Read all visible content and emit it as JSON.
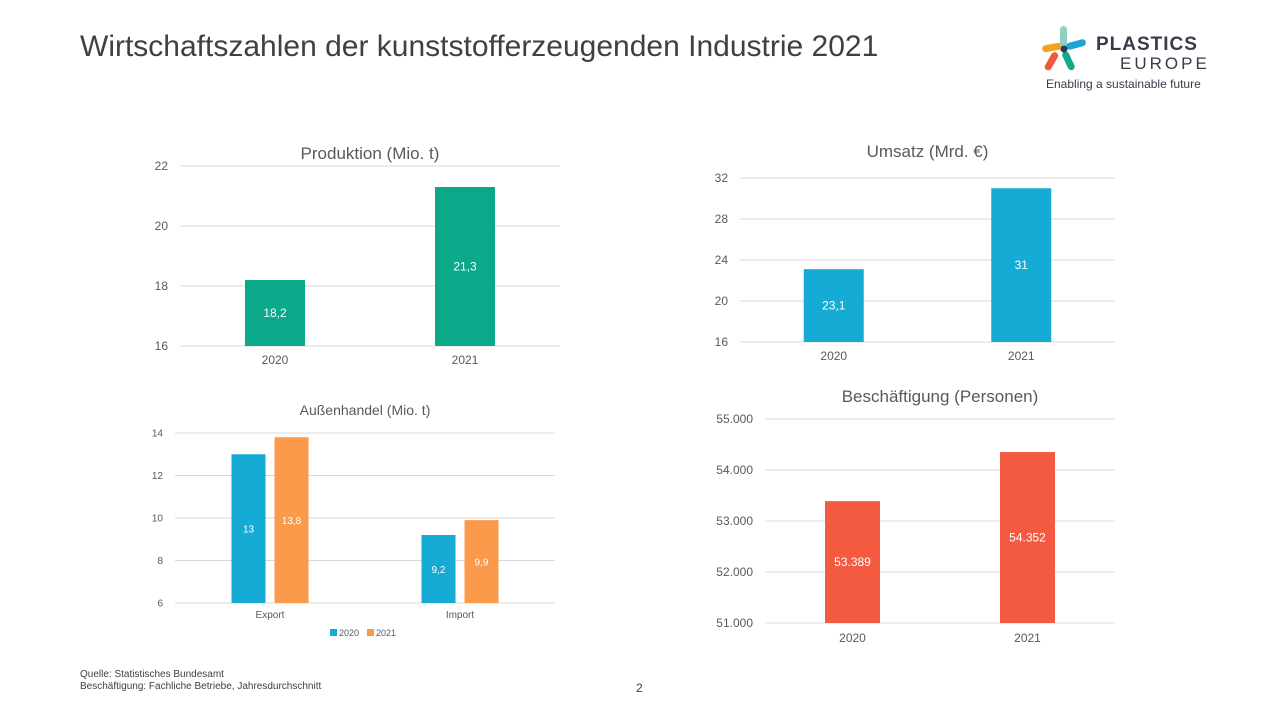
{
  "slide": {
    "title": "Wirtschaftszahlen der kunststofferzeugenden Industrie 2021",
    "page_number": "2",
    "footnotes": [
      "Quelle: Statistisches Bundesamt",
      "Beschäftigung: Fachliche Betriebe, Jahresdurchschnitt"
    ]
  },
  "logo": {
    "brand_line1": "PLASTICS",
    "brand_line2": "EUROPE",
    "tagline": "Enabling a sustainable future",
    "colors": [
      "#1aa7d6",
      "#f7a21b",
      "#ef5a3c",
      "#14a88a"
    ]
  },
  "chart_data": [
    {
      "id": "produktion",
      "type": "bar",
      "title": "Produktion (Mio. t)",
      "categories": [
        "2020",
        "2021"
      ],
      "values": [
        18.2,
        21.3
      ],
      "value_labels": [
        "18,2",
        "21,3"
      ],
      "ylim": [
        16,
        22
      ],
      "yticks": [
        16,
        18,
        20,
        22
      ],
      "ytick_labels": [
        "16",
        "18",
        "20",
        "22"
      ],
      "color": "#0aa98a",
      "grid": true
    },
    {
      "id": "umsatz",
      "type": "bar",
      "title": "Umsatz (Mrd. €)",
      "categories": [
        "2020",
        "2021"
      ],
      "values": [
        23.1,
        31
      ],
      "value_labels": [
        "23,1",
        "31"
      ],
      "ylim": [
        16,
        32
      ],
      "yticks": [
        16,
        20,
        24,
        28,
        32
      ],
      "ytick_labels": [
        "16",
        "20",
        "24",
        "28",
        "32"
      ],
      "color": "#16abd4",
      "grid": true
    },
    {
      "id": "aussenhandel",
      "type": "bar",
      "title": "Außenhandel (Mio. t)",
      "categories": [
        "Export",
        "Import"
      ],
      "series": [
        {
          "name": "2020",
          "values": [
            13,
            9.2
          ],
          "value_labels": [
            "13",
            "9,2"
          ],
          "color": "#16abd4"
        },
        {
          "name": "2021",
          "values": [
            13.8,
            9.9
          ],
          "value_labels": [
            "13,8",
            "9,9"
          ],
          "color": "#fb9a4a"
        }
      ],
      "ylim": [
        6,
        14
      ],
      "yticks": [
        6,
        8,
        10,
        12,
        14
      ],
      "ytick_labels": [
        "6",
        "8",
        "10",
        "12",
        "14"
      ],
      "legend": "bottom",
      "grid": true
    },
    {
      "id": "beschaeftigung",
      "type": "bar",
      "title": "Beschäftigung (Personen)",
      "categories": [
        "2020",
        "2021"
      ],
      "values": [
        53389,
        54352
      ],
      "value_labels": [
        "53.389",
        "54.352"
      ],
      "ylim": [
        51000,
        55000
      ],
      "yticks": [
        51000,
        52000,
        53000,
        54000,
        55000
      ],
      "ytick_labels": [
        "51.000",
        "52.000",
        "53.000",
        "54.000",
        "55.000"
      ],
      "color": "#f45a3f",
      "grid": true
    }
  ]
}
